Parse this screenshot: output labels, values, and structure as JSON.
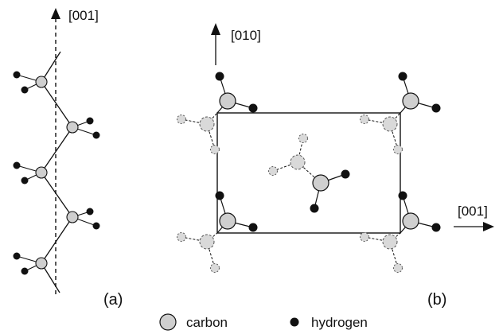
{
  "panel_a": {
    "axis_label": "[001]",
    "panel_label": "(a)"
  },
  "panel_b": {
    "axis_vertical_label": "[010]",
    "axis_horizontal_label": "[001]",
    "panel_label": "(b)"
  },
  "legend": {
    "carbon_label": "carbon",
    "hydrogen_label": "hydrogen"
  },
  "colors": {
    "carbon_fill": "#cfcfcf",
    "hydrogen_fill": "#111111",
    "line": "#111111",
    "dashed_atom_stroke": "#555555"
  }
}
